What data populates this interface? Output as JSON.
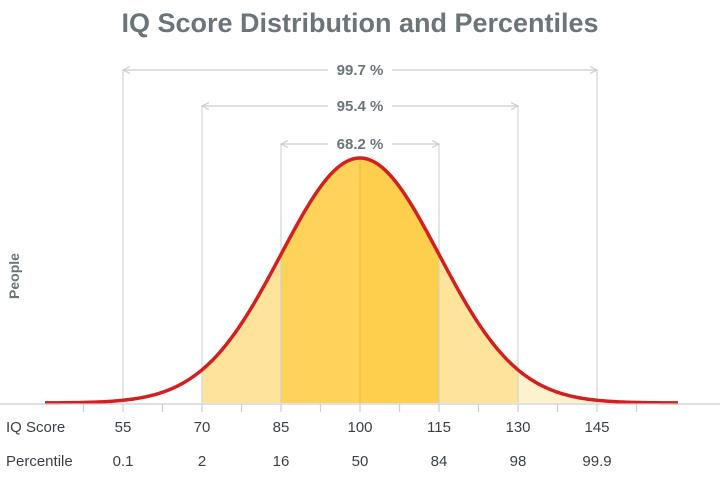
{
  "chart_data": {
    "type": "area",
    "title": "IQ Score Distribution and Percentiles",
    "ylabel": "People",
    "distribution": {
      "mean": 100,
      "sd": 15
    },
    "xlim": [
      37,
      175
    ],
    "rows": [
      {
        "label": "IQ Score",
        "values": [
          "55",
          "70",
          "85",
          "100",
          "115",
          "130",
          "145"
        ]
      },
      {
        "label": "Percentile",
        "values": [
          "0.1",
          "2",
          "16",
          "50",
          "84",
          "98",
          "99.9"
        ]
      }
    ],
    "tick_positions": [
      55,
      70,
      85,
      100,
      115,
      130,
      145
    ],
    "minor_ticks": [
      47.5,
      62.5,
      77.5,
      92.5,
      107.5,
      122.5,
      137.5,
      152.5
    ],
    "bands": [
      {
        "label": "68.2 %",
        "from": 85,
        "to": 115
      },
      {
        "label": "95.4 %",
        "from": 70,
        "to": 130
      },
      {
        "label": "99.7 %",
        "from": 55,
        "to": 145
      }
    ],
    "fill_regions": [
      {
        "from": 70,
        "to": 85,
        "color": "#fde49a"
      },
      {
        "from": 85,
        "to": 100,
        "color": "#fdd35a"
      },
      {
        "from": 100,
        "to": 115,
        "color": "#fdcf4c"
      },
      {
        "from": 115,
        "to": 130,
        "color": "#fde49a"
      },
      {
        "from": 130,
        "to": 145,
        "color": "#fef2cc"
      }
    ],
    "colors": {
      "curve": "#d21f1f",
      "guide": "#c9ced2",
      "text": "#6b7479",
      "label": "#3a4045"
    },
    "grid": false
  }
}
